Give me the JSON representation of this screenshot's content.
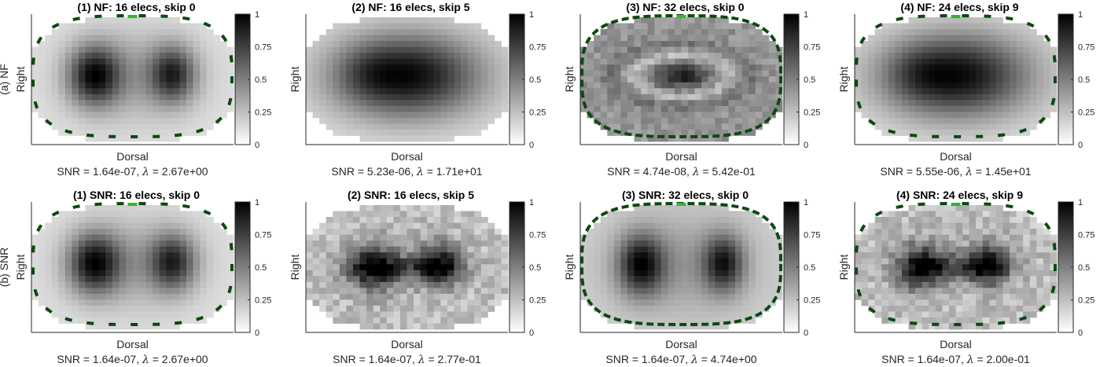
{
  "figure": {
    "rows": [
      {
        "row_label": "(a) NF",
        "panels": [
          {
            "title": "(1) NF: 16 elecs, skip 0",
            "xlabel": "Dorsal",
            "ylabel": "Right",
            "snr": "SNR = 1.64e-07, ",
            "lambda_symbol": "λ",
            "lambda_value": " = 2.67e+00",
            "pattern": "two-lobes",
            "boundary": "oval"
          },
          {
            "title": "(2) NF: 16 elecs, skip 5",
            "xlabel": "Dorsal",
            "ylabel": "Right",
            "snr": "SNR = 5.23e-06, ",
            "lambda_symbol": "λ",
            "lambda_value": " = 1.71e+01",
            "pattern": "dark-wide",
            "boundary": "none"
          },
          {
            "title": "(3) NF: 32 elecs, skip 0",
            "xlabel": "Dorsal",
            "ylabel": "Right",
            "snr": "SNR = 4.74e-08, ",
            "lambda_symbol": "λ",
            "lambda_value": " = 5.42e-01",
            "pattern": "ring",
            "boundary": "full"
          },
          {
            "title": "(4) NF: 24 elecs, skip 9",
            "xlabel": "Dorsal",
            "ylabel": "Right",
            "snr": "SNR = 5.55e-06, ",
            "lambda_symbol": "λ",
            "lambda_value": " = 1.45e+01",
            "pattern": "dark-wide",
            "boundary": "oval"
          }
        ]
      },
      {
        "row_label": "(b) SNR",
        "panels": [
          {
            "title": "(1) SNR: 16 elecs, skip 0",
            "xlabel": "Dorsal",
            "ylabel": "Right",
            "snr": "SNR = 1.64e-07, ",
            "lambda_symbol": "λ",
            "lambda_value": " = 2.67e+00",
            "pattern": "two-lobes",
            "boundary": "oval"
          },
          {
            "title": "(2) SNR: 16 elecs, skip 5",
            "xlabel": "Dorsal",
            "ylabel": "Right",
            "snr": "SNR = 1.64e-07, ",
            "lambda_symbol": "λ",
            "lambda_value": " = 2.77e-01",
            "pattern": "two-lobes-noisy",
            "boundary": "none"
          },
          {
            "title": "(3) SNR: 32 elecs, skip 0",
            "xlabel": "Dorsal",
            "ylabel": "Right",
            "snr": "SNR = 1.64e-07, ",
            "lambda_symbol": "λ",
            "lambda_value": " = 4.74e+00",
            "pattern": "two-lobes-smooth",
            "boundary": "full"
          },
          {
            "title": "(4) SNR: 24 elecs, skip 9",
            "xlabel": "Dorsal",
            "ylabel": "Right",
            "snr": "SNR = 1.64e-07, ",
            "lambda_symbol": "λ",
            "lambda_value": " = 2.00e-01",
            "pattern": "two-lobes-noisy",
            "boundary": "oval"
          }
        ]
      }
    ],
    "colorbar_ticks": [
      "0",
      "0.25",
      "0.5",
      "0.75",
      "1"
    ],
    "colors": {
      "electrode_dark": "#0b4a10",
      "electrode_highlight": "#2fb82f",
      "axis": "#262626"
    }
  }
}
